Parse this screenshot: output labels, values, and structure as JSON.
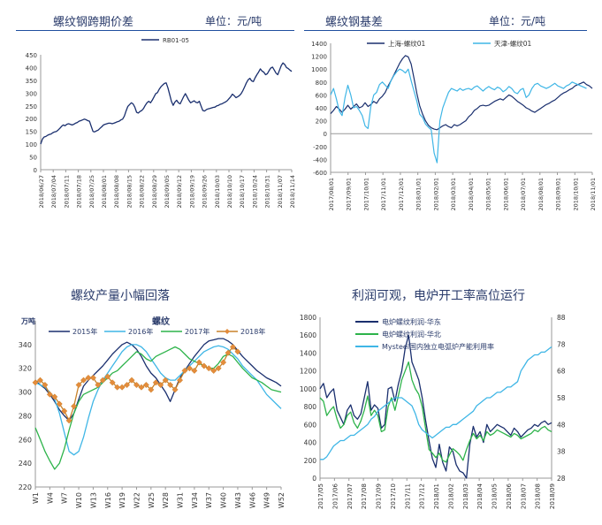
{
  "chart_data": [
    {
      "id": "c1",
      "type": "line",
      "title": "螺纹钢跨期价差",
      "unit": "单位：元/吨",
      "legend": [
        "RB01-05"
      ],
      "colors": [
        "#1a2f6e"
      ],
      "ylim": [
        0,
        450
      ],
      "yticks": [
        0,
        50,
        100,
        150,
        200,
        250,
        300,
        350,
        400,
        450
      ],
      "xticks": [
        "2018/06/27",
        "2018/07/04",
        "2018/07/11",
        "2018/07/18",
        "2018/07/25",
        "2018/08/01",
        "2018/08/08",
        "2018/08/15",
        "2018/08/22",
        "2018/08/29",
        "2018/09/05",
        "2018/09/12",
        "2018/09/19",
        "2018/09/26",
        "2018/10/03",
        "2018/10/10",
        "2018/10/17",
        "2018/10/24",
        "2018/10/31",
        "2018/11/07",
        "2018/11/14"
      ],
      "series": [
        {
          "name": "RB01-05",
          "values": [
            100,
            120,
            128,
            130,
            135,
            138,
            140,
            145,
            148,
            150,
            155,
            162,
            170,
            175,
            172,
            178,
            180,
            178,
            175,
            178,
            182,
            185,
            190,
            192,
            195,
            198,
            196,
            192,
            190,
            170,
            150,
            148,
            152,
            155,
            162,
            168,
            175,
            178,
            180,
            182,
            182,
            180,
            182,
            185,
            188,
            190,
            195,
            198,
            210,
            230,
            248,
            255,
            262,
            258,
            245,
            225,
            222,
            228,
            232,
            240,
            252,
            262,
            268,
            262,
            272,
            285,
            298,
            302,
            315,
            325,
            332,
            338,
            340,
            320,
            295,
            268,
            252,
            265,
            272,
            262,
            258,
            272,
            286,
            298,
            285,
            272,
            262,
            266,
            270,
            264,
            262,
            268,
            250,
            232,
            230,
            235,
            238,
            240,
            242,
            244,
            245,
            250,
            252,
            256,
            258,
            262,
            265,
            270,
            278,
            286,
            296,
            290,
            282,
            286,
            290,
            298,
            310,
            325,
            340,
            352,
            358,
            348,
            345,
            360,
            372,
            382,
            395,
            386,
            382,
            372,
            376,
            388,
            398,
            402,
            390,
            378,
            372,
            390,
            408,
            418,
            412,
            400,
            396,
            390,
            385
          ]
        }
      ]
    },
    {
      "id": "c2",
      "type": "line",
      "title": "螺纹钢基差",
      "unit": "单位：元/吨",
      "legend": [
        "上海-螺纹01",
        "天津-螺纹01"
      ],
      "colors": [
        "#1a2f6e",
        "#3fb6e6"
      ],
      "ylim": [
        -600,
        1400
      ],
      "yticks": [
        -600,
        -400,
        -200,
        0,
        200,
        400,
        600,
        800,
        1000,
        1200,
        1400
      ],
      "xticks": [
        "2017/08/01",
        "2017/09/01",
        "2017/10/01",
        "2017/11/01",
        "2017/12/01",
        "2018/01/01",
        "2018/02/01",
        "2018/03/01",
        "2018/04/01",
        "2018/05/01",
        "2018/06/01",
        "2018/07/01",
        "2018/08/01",
        "2018/09/01",
        "2018/10/01",
        "2018/11/01"
      ],
      "series": [
        {
          "name": "上海-螺纹01",
          "values": [
            310,
            360,
            420,
            380,
            330,
            380,
            440,
            380,
            420,
            460,
            400,
            420,
            480,
            420,
            450,
            500,
            470,
            540,
            580,
            640,
            740,
            820,
            910,
            1000,
            1090,
            1160,
            1210,
            1190,
            1080,
            860,
            620,
            430,
            300,
            200,
            130,
            90,
            70,
            60,
            90,
            120,
            140,
            110,
            90,
            140,
            120,
            140,
            170,
            200,
            260,
            300,
            360,
            390,
            430,
            440,
            430,
            440,
            470,
            500,
            520,
            540,
            520,
            560,
            600,
            580,
            540,
            500,
            470,
            440,
            400,
            380,
            350,
            330,
            360,
            390,
            420,
            450,
            470,
            500,
            520,
            560,
            600,
            630,
            650,
            680,
            700,
            740,
            760,
            780,
            800,
            760,
            740,
            700
          ]
        },
        {
          "name": "天津-螺纹01",
          "values": [
            600,
            700,
            540,
            350,
            280,
            560,
            750,
            600,
            400,
            420,
            360,
            280,
            120,
            80,
            420,
            600,
            640,
            760,
            800,
            750,
            700,
            820,
            900,
            960,
            1000,
            980,
            940,
            1000,
            820,
            660,
            500,
            300,
            250,
            150,
            100,
            60,
            -300,
            -450,
            200,
            400,
            520,
            640,
            700,
            680,
            660,
            700,
            670,
            690,
            700,
            680,
            720,
            740,
            700,
            660,
            700,
            730,
            700,
            680,
            720,
            700,
            650,
            680,
            730,
            700,
            640,
            620,
            680,
            700,
            560,
            600,
            700,
            760,
            780,
            740,
            720,
            700,
            720,
            750,
            780,
            740,
            720,
            700,
            740,
            760,
            800,
            780,
            760,
            740,
            720,
            700
          ]
        }
      ]
    },
    {
      "id": "c3",
      "type": "line",
      "title": "螺纹产量小幅回落",
      "subtitle": "螺纹",
      "ylabel": "万吨",
      "ylim": [
        220,
        360
      ],
      "yticks": [
        220,
        240,
        260,
        280,
        300,
        320,
        340
      ],
      "colors": [
        "#1a2f6e",
        "#3fb6e6",
        "#2db34a",
        "#c9822a"
      ],
      "xticks": [
        "W1",
        "W4",
        "W7",
        "W10",
        "W13",
        "W16",
        "W19",
        "W22",
        "W25",
        "W28",
        "W31",
        "W34",
        "W37",
        "W40",
        "W43",
        "W46",
        "W49",
        "W52"
      ],
      "series": [
        {
          "name": "2015年",
          "values": [
            310,
            306,
            303,
            298,
            292,
            285,
            280,
            276,
            282,
            294,
            305,
            310,
            314,
            318,
            322,
            327,
            332,
            336,
            340,
            342,
            340,
            336,
            330,
            322,
            316,
            312,
            306,
            300,
            292,
            302,
            312,
            318,
            324,
            330,
            335,
            340,
            343,
            344,
            345,
            345,
            343,
            340,
            335,
            330,
            326,
            322,
            318,
            315,
            312,
            310,
            308,
            305
          ]
        },
        {
          "name": "2016年",
          "values": [
            308,
            306,
            304,
            300,
            294,
            282,
            266,
            250,
            247,
            250,
            262,
            278,
            292,
            302,
            310,
            316,
            322,
            328,
            334,
            338,
            340,
            340,
            338,
            334,
            328,
            322,
            316,
            312,
            310,
            310,
            314,
            318,
            322,
            326,
            330,
            334,
            336,
            338,
            339,
            338,
            336,
            332,
            328,
            322,
            318,
            314,
            310,
            304,
            298,
            294,
            290,
            286
          ]
        },
        {
          "name": "2017年",
          "values": [
            270,
            260,
            250,
            242,
            235,
            240,
            252,
            268,
            282,
            292,
            298,
            300,
            302,
            304,
            308,
            312,
            316,
            318,
            322,
            326,
            330,
            334,
            332,
            328,
            326,
            330,
            332,
            334,
            336,
            338,
            336,
            332,
            328,
            326,
            324,
            322,
            320,
            320,
            324,
            330,
            332,
            330,
            325,
            320,
            316,
            312,
            310,
            308,
            305,
            302,
            301,
            300
          ]
        },
        {
          "name": "2018年",
          "values": [
            308,
            310,
            306,
            298,
            296,
            290,
            284,
            276,
            288,
            306,
            310,
            312,
            312,
            306,
            310,
            313,
            308,
            304,
            304,
            306,
            310,
            306,
            304,
            306,
            302,
            308,
            306,
            310,
            306,
            302,
            310,
            318,
            320,
            318,
            325,
            322,
            320,
            318,
            320,
            325,
            333,
            338,
            334
          ]
        }
      ]
    },
    {
      "id": "c4",
      "type": "line",
      "title": "利润可观，电炉开工率高位运行",
      "ylim": [
        0,
        1800
      ],
      "yticks": [
        0,
        200,
        400,
        600,
        800,
        1000,
        1200,
        1400,
        1600,
        1800
      ],
      "y2lim": [
        28,
        88
      ],
      "y2ticks": [
        28,
        38,
        48,
        58,
        68,
        78,
        88
      ],
      "colors": [
        "#1a2f6e",
        "#2db34a",
        "#3fb6e6"
      ],
      "xticks": [
        "2017/05",
        "2017/06",
        "2017/07",
        "2017/08",
        "2017/09",
        "2017/10",
        "2017/11",
        "2017/12",
        "2018/01",
        "2018/02",
        "2018/03",
        "2018/04",
        "2018/05",
        "2018/06",
        "2018/07",
        "2018/08",
        "2018/09"
      ],
      "series": [
        {
          "name": "电炉螺纹利润-华东",
          "axis": "left",
          "values": [
            1000,
            1060,
            900,
            960,
            1000,
            760,
            680,
            600,
            760,
            820,
            700,
            660,
            720,
            900,
            1080,
            760,
            820,
            780,
            560,
            600,
            1000,
            1020,
            860,
            1050,
            1200,
            1450,
            1600,
            1300,
            1200,
            1100,
            900,
            650,
            420,
            220,
            120,
            380,
            180,
            80,
            350,
            300,
            150,
            80,
            60,
            0,
            380,
            580,
            460,
            520,
            400,
            600,
            520,
            560,
            600,
            580,
            560,
            520,
            480,
            560,
            520,
            460,
            500,
            540,
            560,
            600,
            580,
            620,
            640,
            600,
            620
          ]
        },
        {
          "name": "电炉螺纹利润-华北",
          "axis": "left",
          "values": [
            900,
            860,
            700,
            760,
            800,
            660,
            560,
            600,
            700,
            740,
            620,
            560,
            640,
            760,
            920,
            700,
            760,
            700,
            520,
            540,
            800,
            900,
            760,
            920,
            1100,
            1200,
            1300,
            1100,
            1000,
            940,
            800,
            560,
            320,
            280,
            230,
            280,
            200,
            180,
            260,
            330,
            300,
            260,
            200,
            320,
            420,
            500,
            440,
            480,
            420,
            520,
            480,
            500,
            540,
            520,
            500,
            480,
            460,
            500,
            480,
            440,
            460,
            480,
            500,
            540,
            520,
            560,
            580,
            540,
            520
          ]
        },
        {
          "name": "Mysteel国内独立电弧炉产能利用率",
          "axis": "right",
          "values": [
            35,
            35,
            36,
            38,
            40,
            41,
            42,
            42,
            43,
            44,
            44,
            45,
            46,
            47,
            48,
            50,
            51,
            53,
            54,
            55,
            56,
            57,
            58,
            58,
            58,
            57,
            56,
            55,
            52,
            48,
            46,
            45,
            44,
            43,
            44,
            45,
            46,
            47,
            47,
            48,
            48,
            49,
            50,
            51,
            52,
            53,
            55,
            56,
            57,
            58,
            58,
            59,
            60,
            60,
            61,
            62,
            62,
            63,
            64,
            68,
            70,
            72,
            73,
            74,
            74,
            75,
            75,
            76,
            77
          ]
        }
      ]
    }
  ]
}
